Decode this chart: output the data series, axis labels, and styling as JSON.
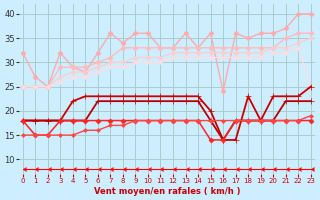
{
  "x": [
    0,
    1,
    2,
    3,
    4,
    5,
    6,
    7,
    8,
    9,
    10,
    11,
    12,
    13,
    14,
    15,
    16,
    17,
    18,
    19,
    20,
    21,
    22,
    23
  ],
  "series": [
    {
      "name": "pink_spiky",
      "color": "#ffaaaa",
      "lw": 1.0,
      "marker": "D",
      "ms": 2.5,
      "y": [
        32,
        27,
        25,
        32,
        29,
        28,
        32,
        36,
        34,
        36,
        36,
        33,
        33,
        36,
        33,
        36,
        24,
        36,
        35,
        36,
        36,
        37,
        40,
        40
      ]
    },
    {
      "name": "pink_upper",
      "color": "#ffbbbb",
      "lw": 1.0,
      "marker": "D",
      "ms": 2.5,
      "y": [
        25,
        25,
        25,
        29,
        29,
        29,
        30,
        31,
        33,
        33,
        33,
        33,
        33,
        33,
        33,
        33,
        33,
        33,
        33,
        33,
        33,
        35,
        36,
        36
      ]
    },
    {
      "name": "pink_mid",
      "color": "#ffcccc",
      "lw": 1.0,
      "marker": "D",
      "ms": 2.0,
      "y": [
        25,
        25,
        25,
        27,
        28,
        28,
        29,
        30,
        30,
        31,
        31,
        31,
        32,
        32,
        32,
        32,
        32,
        32,
        32,
        32,
        33,
        33,
        34,
        35
      ]
    },
    {
      "name": "pink_lower",
      "color": "#ffdddd",
      "lw": 1.0,
      "marker": "D",
      "ms": 2.0,
      "y": [
        25,
        25,
        25,
        26,
        27,
        27,
        28,
        29,
        29,
        30,
        30,
        30,
        31,
        31,
        31,
        31,
        31,
        31,
        31,
        31,
        32,
        32,
        33,
        25
      ]
    },
    {
      "name": "dark_red_upper",
      "color": "#cc0000",
      "lw": 1.3,
      "marker": "+",
      "ms": 4,
      "y": [
        18,
        18,
        18,
        18,
        22,
        23,
        23,
        23,
        23,
        23,
        23,
        23,
        23,
        23,
        23,
        20,
        14,
        14,
        23,
        18,
        23,
        23,
        23,
        25
      ]
    },
    {
      "name": "dark_red_mid",
      "color": "#bb0000",
      "lw": 1.3,
      "marker": "+",
      "ms": 4,
      "y": [
        18,
        18,
        18,
        18,
        18,
        18,
        22,
        22,
        22,
        22,
        22,
        22,
        22,
        22,
        22,
        18,
        14,
        18,
        18,
        18,
        18,
        22,
        22,
        22
      ]
    },
    {
      "name": "red_lower1",
      "color": "#ff2222",
      "lw": 1.1,
      "marker": "D",
      "ms": 2.5,
      "y": [
        18,
        15,
        15,
        18,
        18,
        18,
        18,
        18,
        18,
        18,
        18,
        18,
        18,
        18,
        18,
        14,
        14,
        18,
        18,
        18,
        18,
        18,
        18,
        18
      ]
    },
    {
      "name": "red_lower2",
      "color": "#ff4444",
      "lw": 1.0,
      "marker": "D",
      "ms": 2.0,
      "y": [
        15,
        15,
        15,
        15,
        15,
        16,
        16,
        17,
        17,
        18,
        18,
        18,
        18,
        18,
        18,
        18,
        18,
        18,
        18,
        18,
        18,
        18,
        18,
        19
      ]
    },
    {
      "name": "red_bottom_flat",
      "color": "#ff0000",
      "lw": 0.8,
      "marker": 4,
      "ms": 3,
      "y": [
        8,
        8,
        8,
        8,
        8,
        8,
        8,
        8,
        8,
        8,
        8,
        8,
        8,
        8,
        8,
        8,
        8,
        8,
        8,
        8,
        8,
        8,
        8,
        8
      ]
    }
  ],
  "xlim": [
    -0.3,
    23.3
  ],
  "ylim": [
    7,
    42
  ],
  "yticks": [
    10,
    15,
    20,
    25,
    30,
    35,
    40
  ],
  "xticks": [
    0,
    1,
    2,
    3,
    4,
    5,
    6,
    7,
    8,
    9,
    10,
    11,
    12,
    13,
    14,
    15,
    16,
    17,
    18,
    19,
    20,
    21,
    22,
    23
  ],
  "xlabel": "Vent moyen/en rafales ( km/h )",
  "bg_color": "#cceeff",
  "grid_color": "#aacccc",
  "title": ""
}
